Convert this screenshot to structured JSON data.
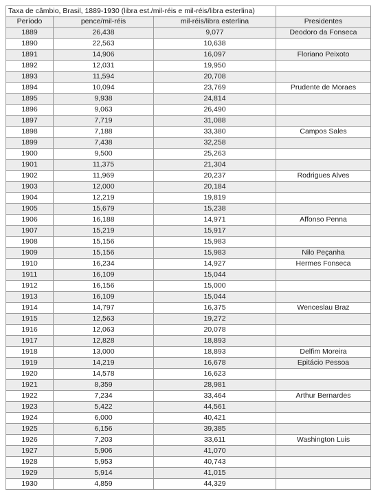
{
  "table": {
    "title": "Taxa de câmbio, Brasil, 1889-1930 (libra est./mil-réis e mil-réis/libra esterlina)",
    "columns": [
      "Período",
      "pence/mil-réis",
      "mil-réis/libra esterlina",
      "Presidentes"
    ],
    "rows": [
      [
        "1889",
        "26,438",
        "9,077",
        "Deodoro da Fonseca"
      ],
      [
        "1890",
        "22,563",
        "10,638",
        ""
      ],
      [
        "1891",
        "14,906",
        "16,097",
        "Floriano Peixoto"
      ],
      [
        "1892",
        "12,031",
        "19,950",
        ""
      ],
      [
        "1893",
        "11,594",
        "20,708",
        ""
      ],
      [
        "1894",
        "10,094",
        "23,769",
        "Prudente de Moraes"
      ],
      [
        "1895",
        "9,938",
        "24,814",
        ""
      ],
      [
        "1896",
        "9,063",
        "26,490",
        ""
      ],
      [
        "1897",
        "7,719",
        "31,088",
        ""
      ],
      [
        "1898",
        "7,188",
        "33,380",
        "Campos Sales"
      ],
      [
        "1899",
        "7,438",
        "32,258",
        ""
      ],
      [
        "1900",
        "9,500",
        "25,263",
        ""
      ],
      [
        "1901",
        "11,375",
        "21,304",
        ""
      ],
      [
        "1902",
        "11,969",
        "20,237",
        "Rodrigues Alves"
      ],
      [
        "1903",
        "12,000",
        "20,184",
        ""
      ],
      [
        "1904",
        "12,219",
        "19,819",
        ""
      ],
      [
        "1905",
        "15,679",
        "15,238",
        ""
      ],
      [
        "1906",
        "16,188",
        "14,971",
        "Affonso Penna"
      ],
      [
        "1907",
        "15,219",
        "15,917",
        ""
      ],
      [
        "1908",
        "15,156",
        "15,983",
        ""
      ],
      [
        "1909",
        "15,156",
        "15,983",
        "Nilo Peçanha"
      ],
      [
        "1910",
        "16,234",
        "14,927",
        "Hermes Fonseca"
      ],
      [
        "1911",
        "16,109",
        "15,044",
        ""
      ],
      [
        "1912",
        "16,156",
        "15,000",
        ""
      ],
      [
        "1913",
        "16,109",
        "15,044",
        ""
      ],
      [
        "1914",
        "14,797",
        "16,375",
        "Wenceslau Braz"
      ],
      [
        "1915",
        "12,563",
        "19,272",
        ""
      ],
      [
        "1916",
        "12,063",
        "20,078",
        ""
      ],
      [
        "1917",
        "12,828",
        "18,893",
        ""
      ],
      [
        "1918",
        "13,000",
        "18,893",
        "Delfim Moreira"
      ],
      [
        "1919",
        "14,219",
        "16,678",
        "Epitácio Pessoa"
      ],
      [
        "1920",
        "14,578",
        "16,623",
        ""
      ],
      [
        "1921",
        "8,359",
        "28,981",
        ""
      ],
      [
        "1922",
        "7,234",
        "33,464",
        "Arthur Bernardes"
      ],
      [
        "1923",
        "5,422",
        "44,561",
        ""
      ],
      [
        "1924",
        "6,000",
        "40,421",
        ""
      ],
      [
        "1925",
        "6,156",
        "39,385",
        ""
      ],
      [
        "1926",
        "7,203",
        "33,611",
        "Washington Luis"
      ],
      [
        "1927",
        "5,906",
        "41,070",
        ""
      ],
      [
        "1928",
        "5,953",
        "40,743",
        ""
      ],
      [
        "1929",
        "5,914",
        "41,015",
        ""
      ],
      [
        "1930",
        "4,859",
        "44,329",
        ""
      ]
    ]
  }
}
